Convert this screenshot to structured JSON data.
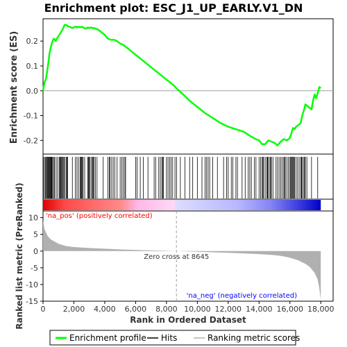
{
  "chart_data": {
    "type": "line",
    "title": "Enrichment plot: ESC_J1_UP_EARLY.V1_DN",
    "es_panel": {
      "ylabel": "Enrichment score (ES)",
      "yticks": [
        "0.2",
        "0.1",
        "0.0",
        "-0.1",
        "-0.2"
      ],
      "ytick_values": [
        0.2,
        0.1,
        0.0,
        -0.1,
        -0.2
      ],
      "ylim": [
        -0.255,
        0.29
      ],
      "series_name": "Enrichment profile",
      "color": "#00ff00",
      "x": [
        0,
        80,
        200,
        320,
        420,
        520,
        620,
        700,
        820,
        900,
        1000,
        1100,
        1200,
        1300,
        1400,
        1500,
        1600,
        1700,
        1800,
        1900,
        2000,
        2100,
        2200,
        2300,
        2400,
        2500,
        2600,
        2700,
        2800,
        2900,
        3000,
        3100,
        3200,
        3300,
        3400,
        3500,
        3600,
        3700,
        3800,
        3900,
        4000,
        4200,
        4400,
        4600,
        4800,
        5000,
        5200,
        5400,
        5600,
        5800,
        6000,
        6500,
        7000,
        7500,
        8000,
        8500,
        8645,
        9000,
        9500,
        10000,
        10500,
        11000,
        11500,
        12000,
        12500,
        13000,
        13500,
        13800,
        14000,
        14200,
        14400,
        14600,
        14800,
        15000,
        15200,
        15400,
        15600,
        15800,
        16000,
        16100,
        16200,
        16300,
        16400,
        16500,
        16600,
        16700,
        16800,
        16900,
        17000,
        17200,
        17400,
        17500,
        17600,
        17700,
        17800,
        17900,
        18000
      ],
      "y": [
        0.0,
        0.03,
        0.05,
        0.1,
        0.15,
        0.18,
        0.2,
        0.21,
        0.2,
        0.21,
        0.22,
        0.23,
        0.24,
        0.25,
        0.265,
        0.265,
        0.26,
        0.258,
        0.255,
        0.253,
        0.255,
        0.258,
        0.255,
        0.258,
        0.255,
        0.258,
        0.255,
        0.252,
        0.25,
        0.255,
        0.252,
        0.255,
        0.252,
        0.253,
        0.25,
        0.248,
        0.245,
        0.24,
        0.235,
        0.23,
        0.225,
        0.21,
        0.205,
        0.205,
        0.2,
        0.19,
        0.185,
        0.175,
        0.165,
        0.155,
        0.145,
        0.12,
        0.095,
        0.07,
        0.045,
        0.02,
        0.01,
        -0.01,
        -0.04,
        -0.065,
        -0.09,
        -0.11,
        -0.13,
        -0.145,
        -0.155,
        -0.165,
        -0.185,
        -0.195,
        -0.2,
        -0.215,
        -0.215,
        -0.2,
        -0.205,
        -0.21,
        -0.22,
        -0.205,
        -0.195,
        -0.2,
        -0.19,
        -0.17,
        -0.15,
        -0.155,
        -0.145,
        -0.14,
        -0.135,
        -0.13,
        -0.1,
        -0.08,
        -0.055,
        -0.065,
        -0.075,
        -0.04,
        -0.015,
        -0.03,
        -0.01,
        0.015,
        0.01
      ]
    },
    "hits": [
      20,
      90,
      150,
      210,
      260,
      300,
      340,
      380,
      420,
      460,
      500,
      540,
      580,
      620,
      700,
      750,
      850,
      950,
      1050,
      1100,
      1150,
      1200,
      1250,
      1300,
      1350,
      1420,
      1500,
      1550,
      1600,
      1900,
      2100,
      2200,
      2300,
      2400,
      2450,
      2500,
      2550,
      2600,
      2700,
      2900,
      2950,
      3000,
      3050,
      3150,
      3200,
      3250,
      3300,
      3400,
      3500,
      3900,
      4200,
      4300,
      4350,
      4450,
      4550,
      4650,
      4800,
      5000,
      5100,
      5200,
      5300,
      5350,
      6000,
      6100,
      6300,
      6500,
      6800,
      7200,
      7300,
      7500,
      7600,
      7700,
      7750,
      7800,
      8000,
      8100,
      8200,
      8300,
      8400,
      8550,
      8650,
      8900,
      9200,
      9500,
      9700,
      10000,
      10300,
      10500,
      10600,
      10700,
      10800,
      11000,
      11300,
      11700,
      11900,
      12000,
      12200,
      12300,
      12500,
      12600,
      12900,
      13100,
      13300,
      13400,
      13500,
      13700,
      13800,
      14000,
      14100,
      14200,
      14250,
      14300,
      14400,
      14500,
      14550,
      14600,
      14700,
      14750,
      14800,
      14900,
      15100,
      15200,
      15300,
      15400,
      15500,
      15600,
      15650,
      15700,
      15800,
      15900,
      16000,
      16050,
      16100,
      16150,
      16200,
      16250,
      16300,
      16400,
      16500,
      16600,
      16700,
      16750,
      16800,
      16900,
      16950,
      17000,
      17100,
      17400,
      17800
    ],
    "metric_panel": {
      "ylabel": "Ranked list metric (PreRanked)",
      "yticks": [
        "10",
        "5",
        "0",
        "-5",
        "-10",
        "-15"
      ],
      "ytick_values": [
        10,
        5,
        0,
        -5,
        -10,
        -15
      ],
      "ylim": [
        -15,
        12
      ],
      "x": [
        0,
        100,
        300,
        500,
        1000,
        1500,
        2000,
        3000,
        4000,
        5000,
        6000,
        7000,
        8000,
        8645,
        9000,
        10000,
        11000,
        12000,
        13000,
        14000,
        15000,
        15500,
        16000,
        16500,
        17000,
        17300,
        17600,
        17800,
        17900,
        18000
      ],
      "y": [
        9.0,
        6.5,
        4.5,
        3.5,
        2.2,
        1.5,
        1.2,
        0.9,
        0.7,
        0.5,
        0.35,
        0.2,
        0.1,
        0.0,
        -0.05,
        -0.2,
        -0.35,
        -0.5,
        -0.7,
        -0.9,
        -1.2,
        -1.5,
        -2.0,
        -2.7,
        -3.8,
        -4.8,
        -6.5,
        -8.5,
        -11.0,
        -14.5
      ],
      "fill_color": "#b0b0b0"
    },
    "xaxis": {
      "label": "Rank in Ordered Dataset",
      "ticks": [
        "0",
        "2,000",
        "4,000",
        "6,000",
        "8,000",
        "10,000",
        "12,000",
        "14,000",
        "16,000",
        "18,000"
      ],
      "tick_values": [
        0,
        2000,
        4000,
        6000,
        8000,
        10000,
        12000,
        14000,
        16000,
        18000
      ],
      "xlim": [
        0,
        18800
      ],
      "data_max": 18000
    },
    "annotations": {
      "zero_cross": "Zero cross at 8645",
      "zero_cross_value": 8645,
      "pos_label": "'na_pos' (positively correlated)",
      "neg_label": "'na_neg' (negatively correlated)",
      "pos_color": "#ff0000",
      "neg_color": "#0000ff"
    },
    "legend": {
      "placement": "bottom",
      "items": [
        {
          "label": "Enrichment profile",
          "color": "#00ff00",
          "style": "thick"
        },
        {
          "label": "Hits",
          "color": "#000000",
          "style": "thin"
        },
        {
          "label": "Ranking metric scores",
          "color": "#b0b0b0",
          "style": "thin"
        }
      ]
    }
  }
}
